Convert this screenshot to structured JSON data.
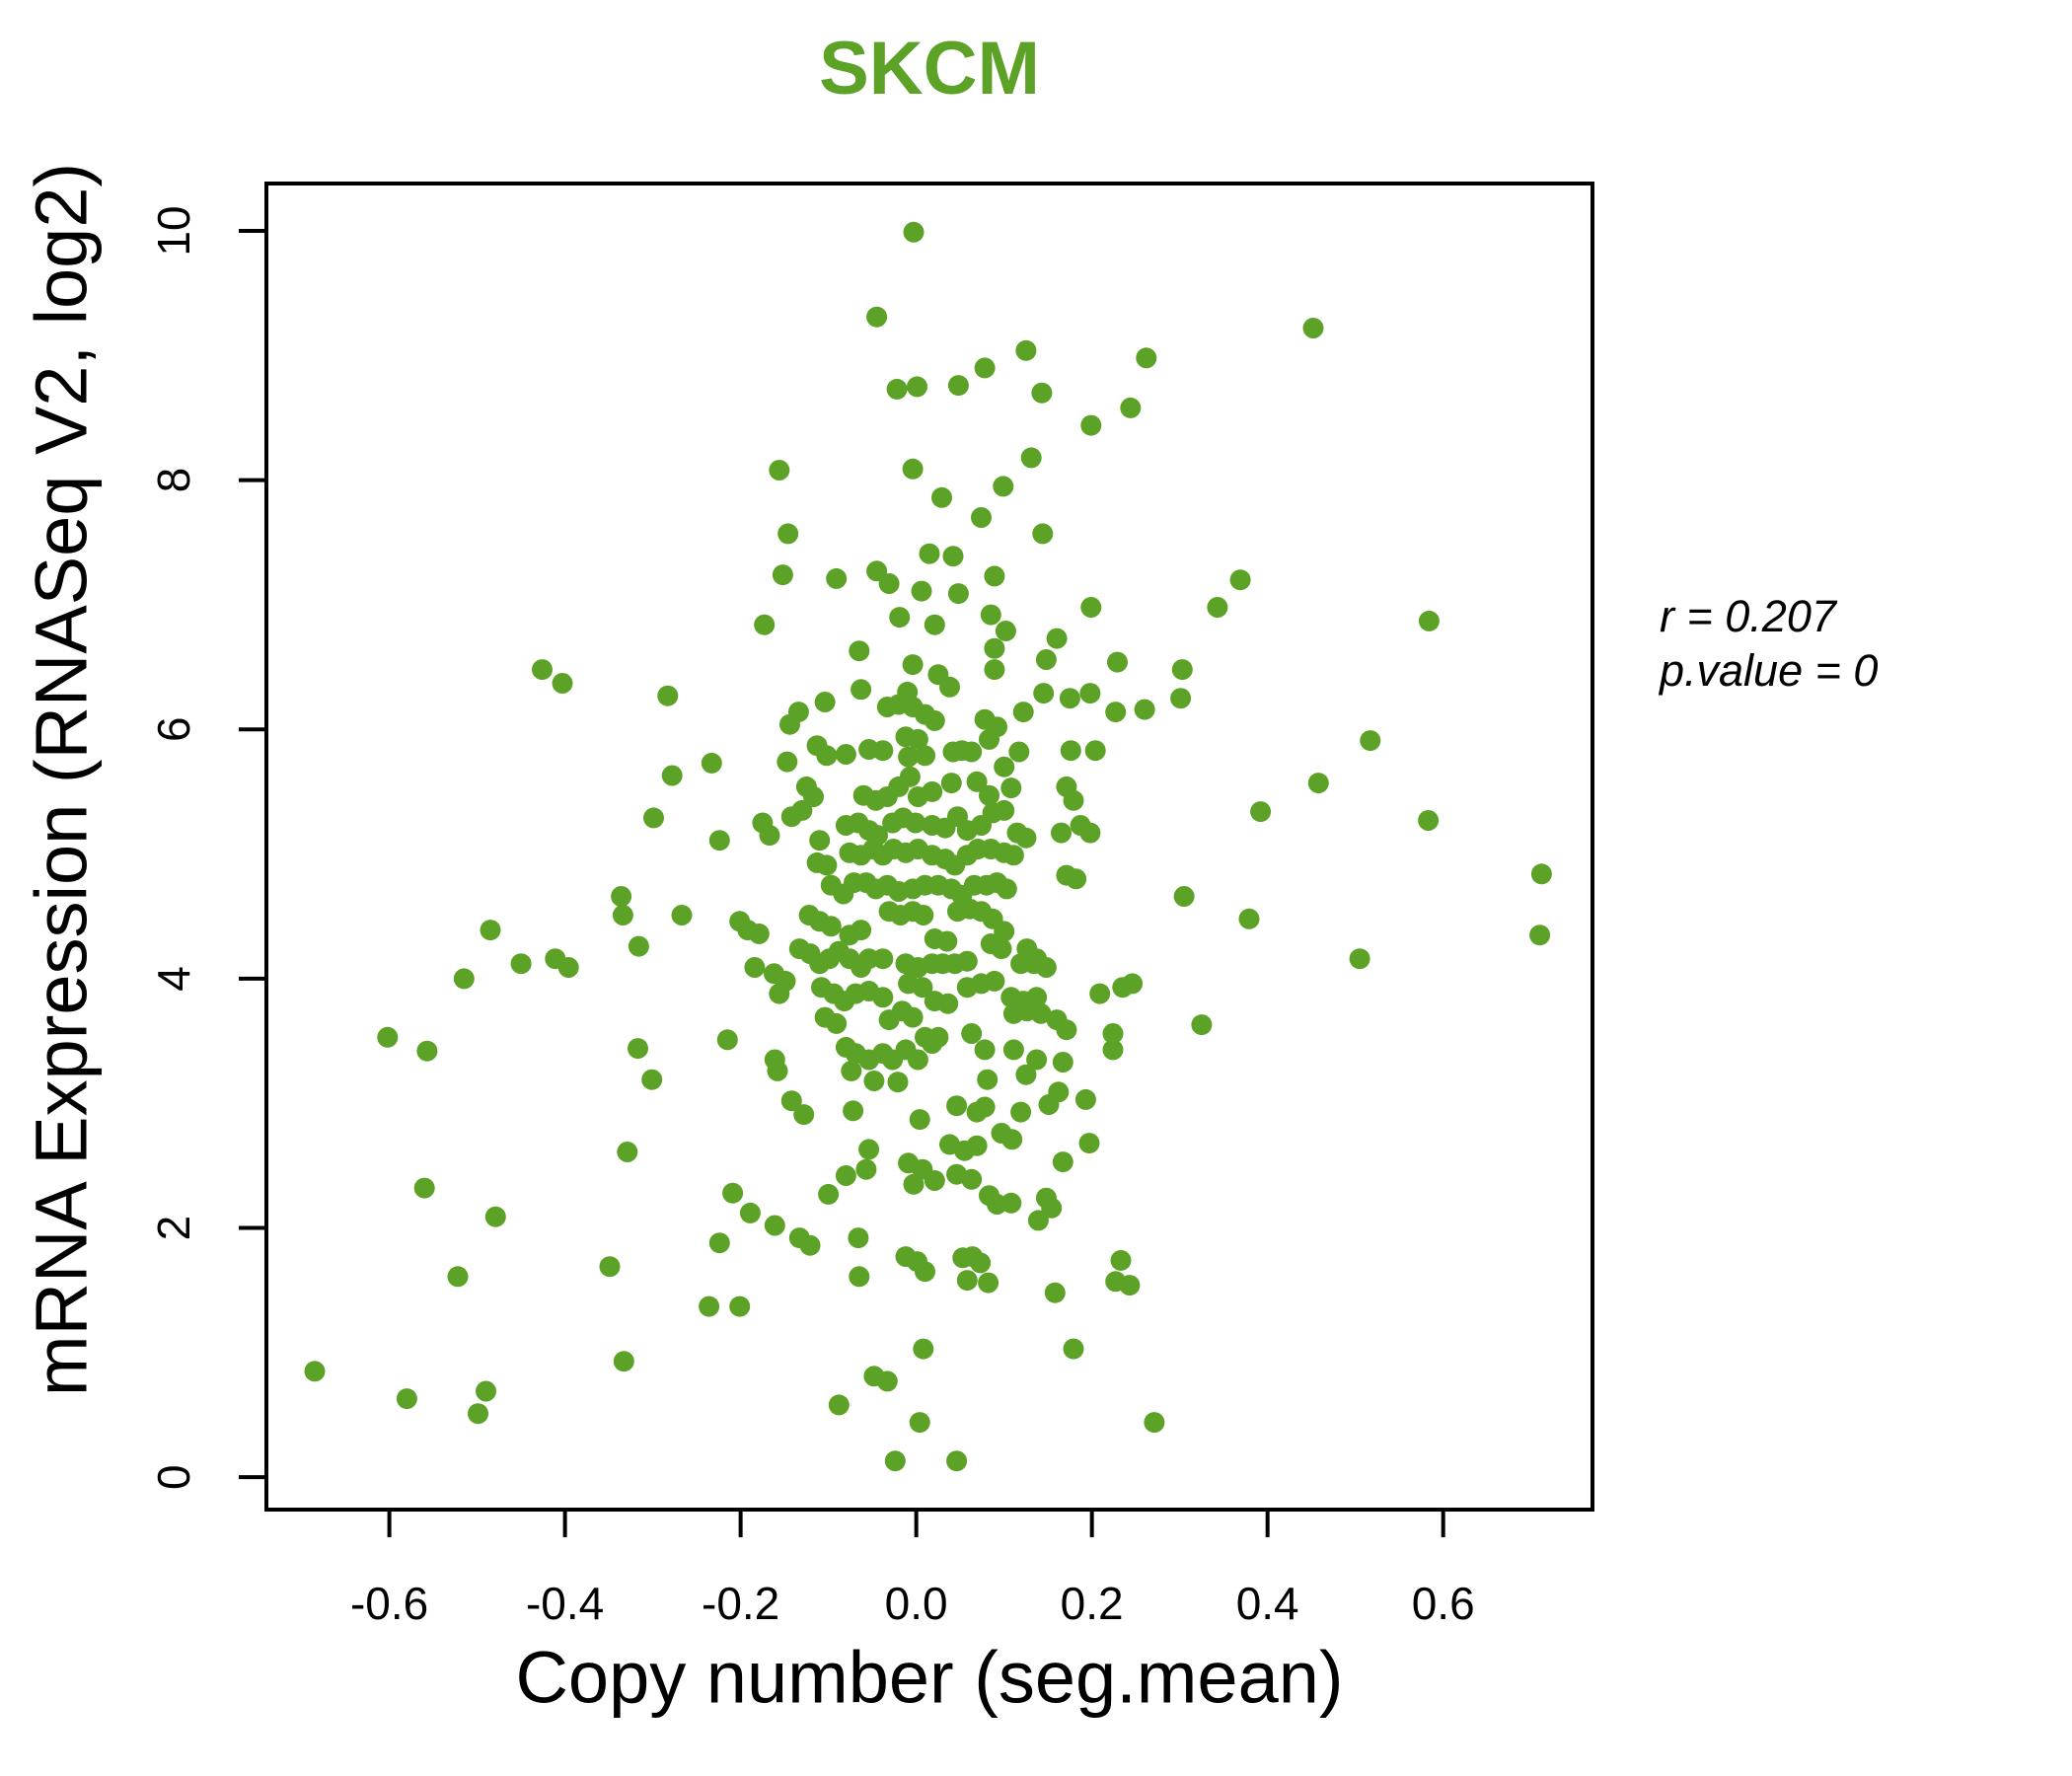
{
  "title": "SKCM",
  "axes": {
    "x_label": "Copy number (seg.mean)",
    "y_label": "mRNA Expression (RNASeq V2, log2)"
  },
  "annotation": {
    "r_line": "r = 0.207",
    "p_line": "p.value = 0"
  },
  "colors": {
    "accent_green": "#5ba226",
    "axis_black": "#000000",
    "background": "#ffffff"
  },
  "chart_data": {
    "type": "scatter",
    "title": "SKCM",
    "xlabel": "Copy number (seg.mean)",
    "ylabel": "mRNA Expression (RNASeq V2, log2)",
    "xlim": [
      -0.74,
      0.77
    ],
    "ylim": [
      -0.26,
      10.38
    ],
    "xticks": [
      -0.6,
      -0.4,
      -0.2,
      0.0,
      0.2,
      0.4,
      0.6
    ],
    "yticks": [
      0,
      2,
      4,
      6,
      8,
      10
    ],
    "grid": false,
    "legend": null,
    "marker_color": "#5ba226",
    "marker_radius_px": 10.5,
    "annotations": [
      "r = 0.207",
      "p.value = 0"
    ],
    "points": [
      [
        -0.003,
        9.99
      ],
      [
        -0.045,
        9.31
      ],
      [
        0.125,
        9.04
      ],
      [
        0.078,
        8.9
      ],
      [
        0.048,
        8.76
      ],
      [
        0.001,
        8.75
      ],
      [
        -0.022,
        8.73
      ],
      [
        0.143,
        8.7
      ],
      [
        0.262,
        8.98
      ],
      [
        0.244,
        8.58
      ],
      [
        0.199,
        8.44
      ],
      [
        0.131,
        8.18
      ],
      [
        -0.156,
        8.08
      ],
      [
        -0.004,
        8.09
      ],
      [
        0.029,
        7.86
      ],
      [
        0.099,
        7.95
      ],
      [
        0.074,
        7.7
      ],
      [
        0.144,
        7.57
      ],
      [
        -0.146,
        7.57
      ],
      [
        -0.152,
        7.24
      ],
      [
        -0.091,
        7.21
      ],
      [
        -0.045,
        7.27
      ],
      [
        -0.031,
        7.17
      ],
      [
        0.015,
        7.41
      ],
      [
        0.042,
        7.39
      ],
      [
        0.006,
        7.11
      ],
      [
        0.048,
        7.09
      ],
      [
        0.089,
        7.23
      ],
      [
        0.199,
        6.98
      ],
      [
        0.085,
        6.92
      ],
      [
        -0.019,
        6.9
      ],
      [
        0.021,
        6.84
      ],
      [
        -0.173,
        6.84
      ],
      [
        0.452,
        9.22
      ],
      [
        0.369,
        7.2
      ],
      [
        0.343,
        6.98
      ],
      [
        0.584,
        6.87
      ],
      [
        -0.426,
        6.48
      ],
      [
        -0.403,
        6.37
      ],
      [
        -0.283,
        6.27
      ],
      [
        -0.278,
        5.63
      ],
      [
        -0.233,
        5.73
      ],
      [
        -0.299,
        5.29
      ],
      [
        -0.336,
        4.66
      ],
      [
        -0.334,
        4.51
      ],
      [
        -0.267,
        4.51
      ],
      [
        -0.485,
        4.39
      ],
      [
        -0.316,
        4.26
      ],
      [
        -0.411,
        4.16
      ],
      [
        -0.396,
        4.09
      ],
      [
        -0.45,
        4.12
      ],
      [
        -0.515,
        4.0
      ],
      [
        -0.317,
        3.44
      ],
      [
        -0.602,
        3.53
      ],
      [
        -0.557,
        3.42
      ],
      [
        0.303,
        6.48
      ],
      [
        0.301,
        6.25
      ],
      [
        0.26,
        6.16
      ],
      [
        0.517,
        5.91
      ],
      [
        0.458,
        5.57
      ],
      [
        0.392,
        5.34
      ],
      [
        0.583,
        5.27
      ],
      [
        0.712,
        4.84
      ],
      [
        0.305,
        4.66
      ],
      [
        0.379,
        4.48
      ],
      [
        0.71,
        4.35
      ],
      [
        0.505,
        4.16
      ],
      [
        0.325,
        3.63
      ],
      [
        0.102,
        6.79
      ],
      [
        0.16,
        6.73
      ],
      [
        -0.065,
        6.63
      ],
      [
        0.089,
        6.65
      ],
      [
        -0.004,
        6.52
      ],
      [
        0.148,
        6.56
      ],
      [
        0.229,
        6.54
      ],
      [
        0.025,
        6.44
      ],
      [
        0.038,
        6.34
      ],
      [
        0.089,
        6.48
      ],
      [
        -0.063,
        6.32
      ],
      [
        -0.01,
        6.3
      ],
      [
        0.145,
        6.29
      ],
      [
        0.175,
        6.25
      ],
      [
        0.198,
        6.29
      ],
      [
        -0.134,
        6.14
      ],
      [
        -0.104,
        6.22
      ],
      [
        -0.033,
        6.18
      ],
      [
        -0.02,
        6.2
      ],
      [
        -0.004,
        6.18
      ],
      [
        0.01,
        6.12
      ],
      [
        0.122,
        6.14
      ],
      [
        0.227,
        6.14
      ],
      [
        -0.144,
        6.04
      ],
      [
        0.021,
        6.07
      ],
      [
        0.078,
        6.08
      ],
      [
        0.092,
        6.02
      ],
      [
        -0.012,
        5.94
      ],
      [
        0.002,
        5.92
      ],
      [
        0.052,
        5.83
      ],
      [
        0.083,
        5.92
      ],
      [
        -0.147,
        5.74
      ],
      [
        -0.113,
        5.87
      ],
      [
        -0.102,
        5.79
      ],
      [
        -0.08,
        5.8
      ],
      [
        -0.054,
        5.84
      ],
      [
        -0.038,
        5.83
      ],
      [
        -0.009,
        5.78
      ],
      [
        0.01,
        5.79
      ],
      [
        0.042,
        5.82
      ],
      [
        0.063,
        5.82
      ],
      [
        0.1,
        5.7
      ],
      [
        0.117,
        5.82
      ],
      [
        0.176,
        5.83
      ],
      [
        0.204,
        5.83
      ],
      [
        -0.125,
        5.54
      ],
      [
        -0.117,
        5.46
      ],
      [
        -0.06,
        5.47
      ],
      [
        -0.046,
        5.43
      ],
      [
        -0.033,
        5.46
      ],
      [
        -0.02,
        5.54
      ],
      [
        -0.007,
        5.62
      ],
      [
        0.002,
        5.46
      ],
      [
        0.018,
        5.5
      ],
      [
        0.04,
        5.57
      ],
      [
        0.069,
        5.58
      ],
      [
        0.083,
        5.47
      ],
      [
        0.108,
        5.53
      ],
      [
        0.171,
        5.54
      ],
      [
        0.179,
        5.43
      ],
      [
        -0.175,
        5.25
      ],
      [
        -0.167,
        5.15
      ],
      [
        -0.224,
        5.11
      ],
      [
        -0.142,
        5.3
      ],
      [
        -0.13,
        5.35
      ],
      [
        -0.11,
        5.11
      ],
      [
        -0.08,
        5.23
      ],
      [
        -0.066,
        5.25
      ],
      [
        -0.054,
        5.19
      ],
      [
        -0.044,
        5.15
      ],
      [
        -0.027,
        5.25
      ],
      [
        -0.015,
        5.29
      ],
      [
        -0.001,
        5.25
      ],
      [
        0.018,
        5.23
      ],
      [
        0.033,
        5.21
      ],
      [
        0.047,
        5.3
      ],
      [
        0.058,
        5.19
      ],
      [
        0.074,
        5.23
      ],
      [
        0.087,
        5.33
      ],
      [
        0.1,
        5.35
      ],
      [
        0.115,
        5.17
      ],
      [
        0.125,
        5.13
      ],
      [
        0.165,
        5.17
      ],
      [
        0.187,
        5.23
      ],
      [
        0.198,
        5.17
      ],
      [
        -0.113,
        4.93
      ],
      [
        -0.102,
        4.91
      ],
      [
        -0.076,
        5.01
      ],
      [
        -0.063,
        4.99
      ],
      [
        -0.049,
        5.04
      ],
      [
        -0.038,
        4.99
      ],
      [
        -0.026,
        5.04
      ],
      [
        -0.012,
        5.01
      ],
      [
        0.002,
        5.04
      ],
      [
        0.018,
        4.99
      ],
      [
        0.033,
        4.96
      ],
      [
        0.044,
        4.91
      ],
      [
        0.058,
        4.99
      ],
      [
        0.07,
        5.04
      ],
      [
        0.085,
        5.04
      ],
      [
        0.1,
        5.01
      ],
      [
        0.111,
        4.99
      ],
      [
        0.171,
        4.83
      ],
      [
        0.182,
        4.8
      ],
      [
        -0.097,
        4.75
      ],
      [
        -0.083,
        4.68
      ],
      [
        -0.071,
        4.77
      ],
      [
        -0.057,
        4.77
      ],
      [
        -0.046,
        4.72
      ],
      [
        -0.033,
        4.75
      ],
      [
        -0.02,
        4.7
      ],
      [
        -0.004,
        4.72
      ],
      [
        0.01,
        4.75
      ],
      [
        0.025,
        4.75
      ],
      [
        0.04,
        4.72
      ],
      [
        0.052,
        4.67
      ],
      [
        0.066,
        4.75
      ],
      [
        0.08,
        4.75
      ],
      [
        0.092,
        4.77
      ],
      [
        0.103,
        4.72
      ],
      [
        -0.201,
        4.46
      ],
      [
        -0.192,
        4.39
      ],
      [
        -0.179,
        4.36
      ],
      [
        -0.122,
        4.51
      ],
      [
        -0.11,
        4.46
      ],
      [
        -0.097,
        4.42
      ],
      [
        -0.076,
        4.35
      ],
      [
        -0.063,
        4.39
      ],
      [
        -0.031,
        4.54
      ],
      [
        -0.018,
        4.51
      ],
      [
        -0.004,
        4.54
      ],
      [
        0.008,
        4.51
      ],
      [
        0.021,
        4.32
      ],
      [
        0.035,
        4.3
      ],
      [
        0.047,
        4.54
      ],
      [
        0.061,
        4.56
      ],
      [
        0.074,
        4.54
      ],
      [
        0.087,
        4.48
      ],
      [
        0.1,
        4.38
      ],
      [
        0.126,
        4.24
      ],
      [
        0.137,
        4.16
      ],
      [
        -0.184,
        4.09
      ],
      [
        -0.162,
        4.04
      ],
      [
        -0.149,
        3.98
      ],
      [
        -0.133,
        4.24
      ],
      [
        -0.121,
        4.2
      ],
      [
        -0.11,
        4.12
      ],
      [
        -0.099,
        4.16
      ],
      [
        -0.088,
        4.22
      ],
      [
        -0.076,
        4.16
      ],
      [
        -0.063,
        4.09
      ],
      [
        -0.054,
        4.16
      ],
      [
        -0.038,
        4.16
      ],
      [
        -0.012,
        4.12
      ],
      [
        0.002,
        4.09
      ],
      [
        0.018,
        4.12
      ],
      [
        0.03,
        4.12
      ],
      [
        0.044,
        4.12
      ],
      [
        0.058,
        4.14
      ],
      [
        0.085,
        4.28
      ],
      [
        0.097,
        4.24
      ],
      [
        0.119,
        4.12
      ],
      [
        0.134,
        4.12
      ],
      [
        0.148,
        4.09
      ],
      [
        -0.156,
        3.88
      ],
      [
        -0.108,
        3.93
      ],
      [
        -0.094,
        3.88
      ],
      [
        -0.082,
        3.82
      ],
      [
        -0.069,
        3.88
      ],
      [
        -0.054,
        3.9
      ],
      [
        -0.038,
        3.85
      ],
      [
        -0.009,
        3.96
      ],
      [
        0.007,
        3.93
      ],
      [
        0.021,
        3.82
      ],
      [
        0.036,
        3.8
      ],
      [
        0.058,
        3.93
      ],
      [
        0.074,
        3.96
      ],
      [
        0.089,
        3.98
      ],
      [
        0.108,
        3.85
      ],
      [
        0.122,
        3.82
      ],
      [
        0.137,
        3.85
      ],
      [
        0.209,
        3.88
      ],
      [
        0.235,
        3.93
      ],
      [
        0.246,
        3.96
      ],
      [
        -0.215,
        3.51
      ],
      [
        -0.104,
        3.69
      ],
      [
        -0.091,
        3.64
      ],
      [
        -0.031,
        3.67
      ],
      [
        -0.016,
        3.74
      ],
      [
        -0.004,
        3.69
      ],
      [
        0.01,
        3.53
      ],
      [
        0.025,
        3.53
      ],
      [
        0.063,
        3.56
      ],
      [
        0.111,
        3.72
      ],
      [
        0.126,
        3.74
      ],
      [
        0.142,
        3.72
      ],
      [
        0.16,
        3.67
      ],
      [
        0.171,
        3.59
      ],
      [
        0.224,
        3.56
      ],
      [
        -0.161,
        3.35
      ],
      [
        -0.08,
        3.45
      ],
      [
        -0.069,
        3.4
      ],
      [
        -0.054,
        3.35
      ],
      [
        -0.038,
        3.4
      ],
      [
        -0.027,
        3.35
      ],
      [
        -0.012,
        3.43
      ],
      [
        0.002,
        3.35
      ],
      [
        0.018,
        3.48
      ],
      [
        0.078,
        3.43
      ],
      [
        0.111,
        3.43
      ],
      [
        0.137,
        3.35
      ],
      [
        0.167,
        3.33
      ],
      [
        0.224,
        3.43
      ],
      [
        -0.301,
        3.19
      ],
      [
        -0.329,
        2.61
      ],
      [
        -0.56,
        2.32
      ],
      [
        -0.479,
        2.09
      ],
      [
        -0.522,
        1.61
      ],
      [
        -0.349,
        1.69
      ],
      [
        -0.236,
        1.37
      ],
      [
        -0.685,
        0.85
      ],
      [
        -0.58,
        0.63
      ],
      [
        -0.49,
        0.69
      ],
      [
        -0.499,
        0.51
      ],
      [
        -0.333,
        0.93
      ],
      [
        -0.158,
        3.26
      ],
      [
        -0.142,
        3.02
      ],
      [
        -0.128,
        2.91
      ],
      [
        -0.074,
        3.26
      ],
      [
        -0.048,
        3.18
      ],
      [
        -0.021,
        3.17
      ],
      [
        -0.072,
        2.94
      ],
      [
        0.004,
        2.87
      ],
      [
        0.046,
        2.98
      ],
      [
        0.069,
        2.93
      ],
      [
        0.078,
        2.97
      ],
      [
        0.081,
        3.19
      ],
      [
        0.125,
        3.23
      ],
      [
        0.162,
        3.09
      ],
      [
        0.151,
        2.99
      ],
      [
        0.193,
        3.03
      ],
      [
        0.119,
        2.93
      ],
      [
        0.197,
        2.68
      ],
      [
        0.167,
        2.53
      ],
      [
        0.097,
        2.76
      ],
      [
        0.109,
        2.71
      ],
      [
        0.038,
        2.67
      ],
      [
        0.055,
        2.62
      ],
      [
        0.069,
        2.66
      ],
      [
        -0.009,
        2.52
      ],
      [
        0.007,
        2.47
      ],
      [
        -0.003,
        2.35
      ],
      [
        0.021,
        2.38
      ],
      [
        -0.054,
        2.63
      ],
      [
        -0.057,
        2.47
      ],
      [
        -0.08,
        2.42
      ],
      [
        -0.1,
        2.27
      ],
      [
        -0.209,
        2.28
      ],
      [
        -0.189,
        2.12
      ],
      [
        -0.161,
        2.02
      ],
      [
        0.046,
        2.43
      ],
      [
        0.063,
        2.39
      ],
      [
        0.083,
        2.26
      ],
      [
        0.092,
        2.19
      ],
      [
        0.108,
        2.2
      ],
      [
        0.148,
        2.24
      ],
      [
        0.154,
        2.16
      ],
      [
        0.139,
        2.06
      ],
      [
        -0.133,
        1.92
      ],
      [
        -0.121,
        1.86
      ],
      [
        -0.066,
        1.92
      ],
      [
        -0.224,
        1.88
      ],
      [
        -0.065,
        1.61
      ],
      [
        -0.012,
        1.77
      ],
      [
        0.001,
        1.73
      ],
      [
        0.01,
        1.65
      ],
      [
        0.053,
        1.76
      ],
      [
        0.064,
        1.77
      ],
      [
        0.073,
        1.72
      ],
      [
        0.058,
        1.58
      ],
      [
        0.082,
        1.56
      ],
      [
        0.158,
        1.48
      ],
      [
        0.233,
        1.74
      ],
      [
        0.227,
        1.57
      ],
      [
        0.243,
        1.54
      ],
      [
        -0.201,
        1.37
      ],
      [
        0.008,
        1.03
      ],
      [
        0.179,
        1.03
      ],
      [
        -0.048,
        0.81
      ],
      [
        -0.033,
        0.77
      ],
      [
        -0.088,
        0.58
      ],
      [
        0.004,
        0.44
      ],
      [
        -0.024,
        0.13
      ],
      [
        0.046,
        0.13
      ],
      [
        0.271,
        0.44
      ]
    ]
  }
}
